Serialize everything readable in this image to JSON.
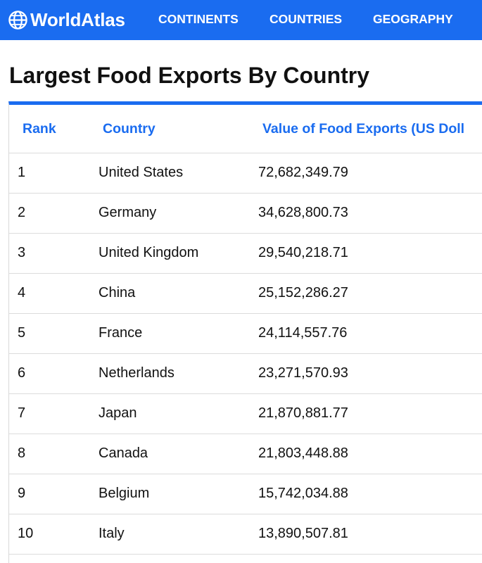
{
  "brand": {
    "name": "WorldAtlas"
  },
  "nav": {
    "items": [
      {
        "label": "CONTINENTS"
      },
      {
        "label": "COUNTRIES"
      },
      {
        "label": "GEOGRAPHY"
      }
    ]
  },
  "page": {
    "title": "Largest Food Exports By Country"
  },
  "table": {
    "headers": [
      "Rank",
      "Country",
      "Value of Food Exports (US Doll"
    ],
    "rows": [
      [
        "1",
        "United States",
        "72,682,349.79"
      ],
      [
        "2",
        "Germany",
        "34,628,800.73"
      ],
      [
        "3",
        "United Kingdom",
        "29,540,218.71"
      ],
      [
        "4",
        "China",
        "25,152,286.27"
      ],
      [
        "5",
        "France",
        "24,114,557.76"
      ],
      [
        "6",
        "Netherlands",
        "23,271,570.93"
      ],
      [
        "7",
        "Japan",
        "21,870,881.77"
      ],
      [
        "8",
        "Canada",
        "21,803,448.88"
      ],
      [
        "9",
        "Belgium",
        "15,742,034.88"
      ],
      [
        "10",
        "Italy",
        "13,890,507.81"
      ]
    ]
  },
  "colors": {
    "accent": "#1a6cf0",
    "row_border": "#dcdcdc"
  },
  "icons": {
    "logo": "globe-icon"
  }
}
